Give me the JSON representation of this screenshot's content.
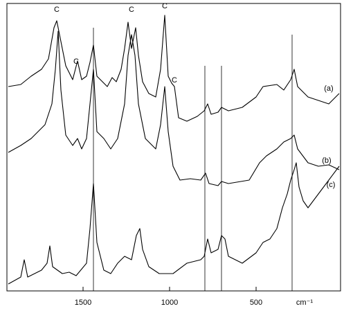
{
  "chart_data": {
    "type": "line",
    "xlabel": "cm⁻¹",
    "xlim": [
      1940,
      12
    ],
    "ylim": [
      0,
      415
    ],
    "xticks": [
      1500,
      1000,
      500
    ],
    "markers": [
      1440,
      796,
      700,
      292
    ],
    "annotations": [
      {
        "text": "C",
        "x": 1652,
        "y": 402
      },
      {
        "text": "C",
        "x": 1540,
        "y": 327
      },
      {
        "text": "C",
        "x": 1220,
        "y": 402
      },
      {
        "text": "C",
        "x": 1028,
        "y": 407
      },
      {
        "text": "C",
        "x": 972,
        "y": 300
      }
    ],
    "series": [
      {
        "name": "(a)",
        "color": "#000000",
        "x": [
          1932,
          1860,
          1800,
          1740,
          1700,
          1668,
          1652,
          1628,
          1600,
          1560,
          1532,
          1508,
          1480,
          1460,
          1440,
          1420,
          1388,
          1360,
          1332,
          1308,
          1280,
          1260,
          1240,
          1220,
          1196,
          1180,
          1156,
          1120,
          1080,
          1052,
          1028,
          1008,
          988,
          972,
          948,
          900,
          840,
          800,
          780,
          760,
          720,
          700,
          660,
          580,
          500,
          460,
          380,
          340,
          300,
          280,
          260,
          200,
          140,
          80,
          20
        ],
        "values": [
          295,
          298,
          310,
          320,
          335,
          380,
          390,
          360,
          325,
          305,
          332,
          305,
          310,
          330,
          355,
          310,
          302,
          295,
          308,
          302,
          320,
          350,
          388,
          350,
          380,
          340,
          302,
          285,
          280,
          320,
          398,
          310,
          300,
          295,
          250,
          245,
          252,
          260,
          270,
          255,
          258,
          265,
          260,
          265,
          280,
          295,
          298,
          290,
          305,
          320,
          295,
          280,
          275,
          270,
          285
        ]
      },
      {
        "name": "(b)",
        "color": "#000000",
        "x": [
          1932,
          1860,
          1800,
          1760,
          1720,
          1680,
          1660,
          1644,
          1628,
          1600,
          1560,
          1532,
          1508,
          1480,
          1460,
          1440,
          1420,
          1380,
          1340,
          1300,
          1260,
          1240,
          1220,
          1200,
          1180,
          1140,
          1080,
          1052,
          1028,
          1008,
          980,
          940,
          880,
          820,
          792,
          772,
          720,
          700,
          660,
          540,
          480,
          440,
          380,
          340,
          300,
          280,
          260,
          200,
          140,
          80,
          20
        ],
        "values": [
          200,
          210,
          220,
          230,
          240,
          270,
          320,
          375,
          290,
          225,
          210,
          220,
          205,
          220,
          270,
          320,
          230,
          220,
          205,
          220,
          270,
          340,
          370,
          340,
          270,
          220,
          205,
          240,
          295,
          230,
          180,
          160,
          162,
          160,
          170,
          155,
          152,
          158,
          155,
          160,
          185,
          195,
          205,
          215,
          220,
          225,
          205,
          185,
          180,
          182,
          175
        ]
      },
      {
        "name": "(c)",
        "color": "#000000",
        "x": [
          1932,
          1860,
          1840,
          1820,
          1780,
          1740,
          1708,
          1692,
          1676,
          1620,
          1580,
          1540,
          1480,
          1460,
          1440,
          1420,
          1380,
          1340,
          1300,
          1260,
          1220,
          1192,
          1172,
          1156,
          1120,
          1060,
          980,
          900,
          820,
          800,
          780,
          760,
          720,
          700,
          680,
          660,
          580,
          500,
          460,
          420,
          380,
          348,
          320,
          300,
          280,
          268,
          252,
          228,
          200,
          140,
          80,
          20
        ],
        "values": [
          10,
          20,
          45,
          20,
          25,
          30,
          40,
          65,
          35,
          25,
          27,
          22,
          40,
          90,
          155,
          70,
          30,
          25,
          40,
          50,
          45,
          80,
          90,
          60,
          35,
          25,
          25,
          40,
          45,
          50,
          75,
          55,
          60,
          80,
          75,
          50,
          40,
          55,
          70,
          75,
          90,
          120,
          140,
          160,
          175,
          185,
          150,
          130,
          120,
          140,
          160,
          180
        ]
      }
    ]
  }
}
